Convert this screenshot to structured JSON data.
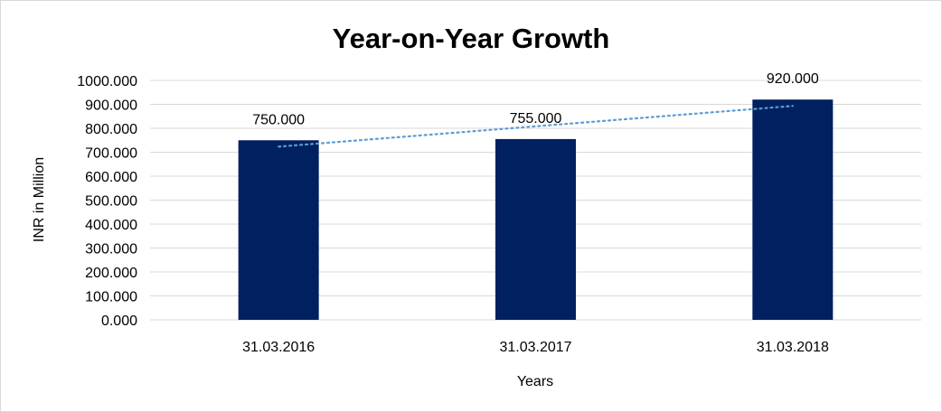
{
  "chart_data": {
    "type": "bar",
    "title": "Year-on-Year Growth",
    "xlabel": "Years",
    "ylabel": "INR in Million",
    "categories": [
      "31.03.2016",
      "31.03.2017",
      "31.03.2018"
    ],
    "series": [
      {
        "values": [
          750,
          755,
          920
        ]
      }
    ],
    "data_labels": [
      "750.000",
      "755.000",
      "920.000"
    ],
    "y_ticks": [
      "0.000",
      "100.000",
      "200.000",
      "300.000",
      "400.000",
      "500.000",
      "600.000",
      "700.000",
      "800.000",
      "900.000",
      "1000.000"
    ],
    "ylim": [
      0,
      1000
    ],
    "grid": true,
    "legend": "none",
    "trendline": "linear",
    "colors": {
      "bar": "#002060",
      "trendline": "#5b9bd5"
    }
  }
}
